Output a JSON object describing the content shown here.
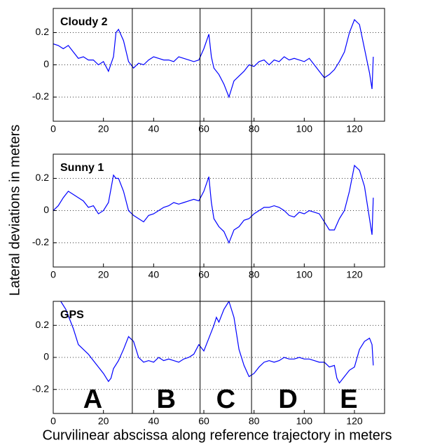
{
  "figure": {
    "ylabel": "Lateral deviations in meters",
    "xlabel": "Curvilinear abscissa along reference trajectory in meters",
    "separators": [
      31.5,
      58.5,
      79,
      108
    ],
    "region_labels": [
      "A",
      "B",
      "C",
      "D",
      "E"
    ]
  },
  "chart_data": [
    {
      "type": "line",
      "title": "Cloudy 2",
      "x": [
        0,
        2,
        4,
        6,
        8,
        10,
        12,
        14,
        16,
        18,
        20,
        22,
        24,
        25,
        26,
        28,
        30,
        32,
        34,
        36,
        38,
        40,
        42,
        44,
        46,
        48,
        50,
        52,
        54,
        56,
        58,
        60,
        62,
        63,
        64,
        66,
        68,
        70,
        72,
        74,
        76,
        78,
        80,
        82,
        84,
        86,
        88,
        90,
        92,
        94,
        96,
        98,
        100,
        102,
        104,
        106,
        108,
        110,
        112,
        114,
        116,
        118,
        120,
        122,
        124,
        126,
        127,
        127.5
      ],
      "series": [
        {
          "color": "#0000ff",
          "values": [
            0.13,
            0.12,
            0.1,
            0.12,
            0.08,
            0.04,
            0.05,
            0.03,
            0.03,
            0.0,
            0.02,
            -0.04,
            0.05,
            0.2,
            0.22,
            0.15,
            0.02,
            -0.02,
            0.01,
            0.0,
            0.03,
            0.05,
            0.04,
            0.03,
            0.03,
            0.02,
            0.05,
            0.04,
            0.03,
            0.02,
            0.03,
            0.1,
            0.19,
            0.05,
            -0.02,
            -0.06,
            -0.12,
            -0.2,
            -0.1,
            -0.07,
            -0.04,
            0.0,
            -0.01,
            0.02,
            0.03,
            0.0,
            0.03,
            0.02,
            0.05,
            0.03,
            0.04,
            0.03,
            0.02,
            0.04,
            0.0,
            -0.04,
            -0.08,
            -0.06,
            -0.03,
            0.02,
            0.08,
            0.2,
            0.28,
            0.25,
            0.1,
            -0.05,
            -0.15,
            0.05
          ]
        }
      ],
      "xlim": [
        0,
        132
      ],
      "xticks": [
        0,
        20,
        40,
        60,
        80,
        100,
        120
      ],
      "ylim": [
        -0.35,
        0.35
      ],
      "yticks": [
        -0.2,
        0,
        0.2
      ],
      "grid": true
    },
    {
      "type": "line",
      "title": "Sunny 1",
      "x": [
        0,
        2,
        4,
        6,
        8,
        10,
        12,
        14,
        16,
        18,
        20,
        22,
        24,
        25,
        26,
        28,
        30,
        32,
        34,
        36,
        38,
        40,
        42,
        44,
        46,
        48,
        50,
        52,
        54,
        56,
        58,
        60,
        62,
        63,
        64,
        66,
        68,
        70,
        72,
        74,
        76,
        78,
        80,
        82,
        84,
        86,
        88,
        90,
        92,
        94,
        96,
        98,
        100,
        102,
        104,
        106,
        108,
        110,
        112,
        114,
        116,
        118,
        120,
        122,
        124,
        126,
        127,
        127.5
      ],
      "series": [
        {
          "color": "#0000ff",
          "values": [
            0.0,
            0.03,
            0.08,
            0.12,
            0.1,
            0.08,
            0.06,
            0.02,
            0.03,
            -0.02,
            0.0,
            0.05,
            0.22,
            0.2,
            0.2,
            0.12,
            0.0,
            -0.03,
            -0.05,
            -0.07,
            -0.03,
            -0.02,
            0.0,
            0.02,
            0.03,
            0.05,
            0.04,
            0.05,
            0.06,
            0.07,
            0.06,
            0.12,
            0.21,
            0.05,
            -0.05,
            -0.1,
            -0.13,
            -0.2,
            -0.12,
            -0.1,
            -0.06,
            -0.05,
            -0.02,
            0.0,
            0.02,
            0.02,
            0.03,
            0.02,
            0.0,
            -0.03,
            -0.04,
            -0.01,
            -0.02,
            0.0,
            -0.01,
            -0.02,
            -0.07,
            -0.12,
            -0.12,
            -0.05,
            0.0,
            0.12,
            0.28,
            0.25,
            0.15,
            -0.05,
            -0.15,
            0.08
          ]
        }
      ],
      "xlim": [
        0,
        132
      ],
      "xticks": [
        0,
        20,
        40,
        60,
        80,
        100,
        120
      ],
      "ylim": [
        -0.35,
        0.35
      ],
      "yticks": [
        -0.2,
        0,
        0.2
      ],
      "grid": true
    },
    {
      "type": "line",
      "title": "GPS",
      "x": [
        0,
        3,
        5,
        8,
        10,
        12,
        14,
        16,
        18,
        20,
        22,
        23,
        24,
        26,
        28,
        30,
        32,
        34,
        36,
        38,
        40,
        42,
        44,
        46,
        48,
        50,
        52,
        54,
        56,
        58,
        60,
        62,
        64,
        65,
        66,
        68,
        70,
        72,
        74,
        76,
        78,
        80,
        82,
        84,
        86,
        88,
        90,
        92,
        94,
        96,
        98,
        100,
        102,
        104,
        106,
        108,
        110,
        112,
        113,
        114,
        116,
        118,
        120,
        122,
        124,
        126,
        127,
        127.5
      ],
      "series": [
        {
          "color": "#0000ff",
          "values": [
            0.42,
            0.35,
            0.3,
            0.18,
            0.08,
            0.05,
            0.02,
            -0.02,
            -0.06,
            -0.1,
            -0.15,
            -0.13,
            -0.07,
            -0.02,
            0.05,
            0.13,
            0.1,
            0.0,
            -0.03,
            -0.02,
            -0.03,
            0.0,
            -0.02,
            -0.01,
            -0.02,
            -0.03,
            -0.01,
            0.0,
            0.02,
            0.08,
            0.04,
            0.12,
            0.2,
            0.25,
            0.22,
            0.3,
            0.35,
            0.25,
            0.05,
            -0.05,
            -0.12,
            -0.1,
            -0.06,
            -0.03,
            -0.02,
            -0.03,
            -0.02,
            0.0,
            -0.01,
            -0.01,
            0.0,
            -0.01,
            -0.01,
            -0.02,
            -0.03,
            -0.03,
            -0.06,
            -0.05,
            -0.13,
            -0.16,
            -0.12,
            -0.08,
            -0.06,
            0.05,
            0.1,
            0.12,
            0.08,
            -0.05
          ]
        }
      ],
      "xlim": [
        0,
        132
      ],
      "xticks": [
        0,
        20,
        40,
        60,
        80,
        100,
        120
      ],
      "ylim": [
        -0.35,
        0.35
      ],
      "yticks": [
        -0.2,
        0,
        0.2
      ],
      "grid": true
    }
  ]
}
